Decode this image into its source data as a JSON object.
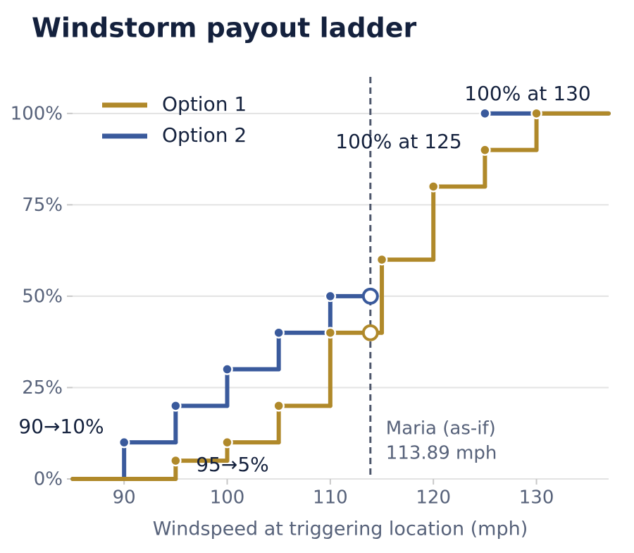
{
  "chart_data": {
    "type": "step",
    "title": "Windstorm payout ladder",
    "xlabel": "Windspeed at triggering location (mph)",
    "xlim": [
      85,
      137
    ],
    "ylim": [
      0,
      110
    ],
    "xticks": [
      90,
      100,
      110,
      120,
      130
    ],
    "yticks": [
      {
        "value": 0,
        "label": "0%"
      },
      {
        "value": 25,
        "label": "25%"
      },
      {
        "value": 50,
        "label": "50%"
      },
      {
        "value": 75,
        "label": "75%"
      },
      {
        "value": 100,
        "label": "100%"
      }
    ],
    "grid": true,
    "legend": "upper left",
    "series": [
      {
        "name": "Option 1",
        "color": "#b0892a",
        "x": [
          85,
          95,
          100,
          105,
          110,
          115,
          120,
          125,
          130
        ],
        "values": [
          0,
          5,
          10,
          20,
          40,
          60,
          80,
          90,
          100
        ]
      },
      {
        "name": "Option 2",
        "color": "#3a5a9c",
        "x": [
          85,
          90,
          95,
          100,
          105,
          110,
          113.89,
          125
        ],
        "values": [
          0,
          10,
          20,
          30,
          40,
          50,
          null,
          100
        ]
      }
    ],
    "trigger": {
      "x": 113.89,
      "label": "Maria (as-if)",
      "sublabel": "113.89 mph",
      "values": [
        40,
        50
      ]
    },
    "annotations": [
      "100% at 130",
      "100% at 125",
      "90→10%",
      "95→5%"
    ]
  }
}
